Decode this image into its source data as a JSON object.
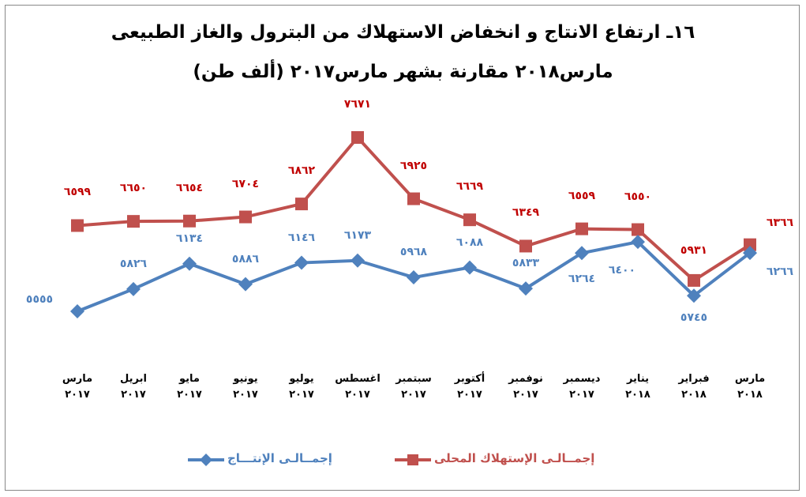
{
  "chart_data": {
    "type": "line",
    "title": "١٦ـ ارتفاع الانتاج و انخفاض الاستهلاك من البترول والغاز الطبيعى",
    "subtitle": "مارس٢٠١٨ مقارنة بشهر مارس٢٠١٧ (ألف طن)",
    "categories": [
      "مارس\n٢٠١٧",
      "ابريل\n٢٠١٧",
      "مايو\n٢٠١٧",
      "يونيو\n٢٠١٧",
      "يوليو\n٢٠١٧",
      "اغسطس\n٢٠١٧",
      "سبتمبر\n٢٠١٧",
      "أكتوبر\n٢٠١٧",
      "نوفمبر\n٢٠١٧",
      "ديسمبر\n٢٠١٧",
      "يناير\n٢٠١٨",
      "فبراير\n٢٠١٨",
      "مارس\n٢٠١٨"
    ],
    "series": [
      {
        "name": "إجمــالـى الإستهلاك المحلى",
        "color": "#c0504d",
        "label_color": "#c00000",
        "marker": "square",
        "values": [
          6599,
          6650,
          6654,
          6704,
          6862,
          7671,
          6925,
          6669,
          6349,
          6559,
          6550,
          5931,
          6366
        ],
        "value_labels": [
          "٦٥٩٩",
          "٦٦٥٠",
          "٦٦٥٤",
          "٦٧٠٤",
          "٦٨٦٢",
          "٧٦٧١",
          "٦٩٢٥",
          "٦٦٦٩",
          "٦٣٤٩",
          "٦٥٥٩",
          "٦٥٥٠",
          "٥٩٣١",
          "٦٣٦٦"
        ]
      },
      {
        "name": "إجمــالـى الإنتـــاج",
        "color": "#4f81bd",
        "label_color": "#4f81bd",
        "marker": "diamond",
        "values": [
          5555,
          5826,
          6134,
          5886,
          6146,
          6173,
          5968,
          6088,
          5833,
          6264,
          6400,
          5745,
          6266
        ],
        "value_labels": [
          "٥٥٥٥",
          "٥٨٢٦",
          "٦١٣٤",
          "٥٨٨٦",
          "٦١٤٦",
          "٦١٧٣",
          "٥٩٦٨",
          "٦٠٨٨",
          "٥٨٣٣",
          "٦٢٦٤",
          "٦٤٠٠",
          "٥٧٤٥",
          "٦٢٦٦"
        ]
      }
    ]
  }
}
